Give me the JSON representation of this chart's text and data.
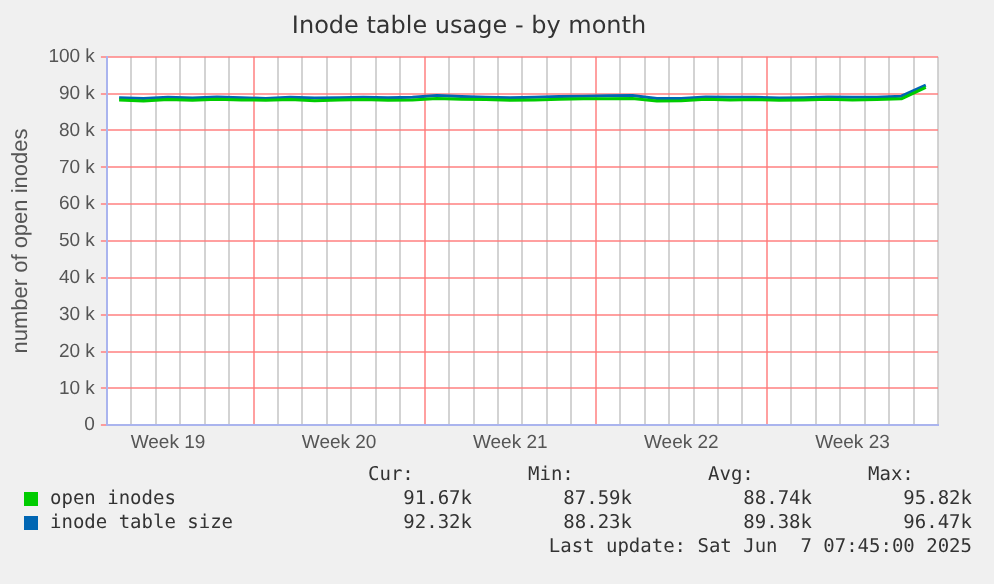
{
  "chart_data": {
    "type": "line",
    "title": "Inode table usage - by month",
    "ylabel": "number of open inodes",
    "categories": [
      null,
      null,
      "Week 19",
      null,
      null,
      null,
      null,
      null,
      null,
      "Week 20",
      null,
      null,
      null,
      null,
      null,
      null,
      "Week 21",
      null,
      null,
      null,
      null,
      null,
      null,
      "Week 22",
      null,
      null,
      null,
      null,
      null,
      null,
      "Week 23",
      null,
      null,
      null
    ],
    "ylim": [
      0,
      100000
    ],
    "yticks": [
      {
        "value": 0,
        "label": "0"
      },
      {
        "value": 10000,
        "label": "10 k"
      },
      {
        "value": 20000,
        "label": "20 k"
      },
      {
        "value": 30000,
        "label": "30 k"
      },
      {
        "value": 40000,
        "label": "40 k"
      },
      {
        "value": 50000,
        "label": "50 k"
      },
      {
        "value": 60000,
        "label": "60 k"
      },
      {
        "value": 70000,
        "label": "70 k"
      },
      {
        "value": 80000,
        "label": "80 k"
      },
      {
        "value": 90000,
        "label": "90 k"
      },
      {
        "value": 100000,
        "label": "100 k"
      }
    ],
    "series": [
      {
        "name": "open inodes",
        "color": "#00cc00",
        "values": [
          88300,
          88000,
          88400,
          88200,
          88500,
          88300,
          88200,
          88400,
          88100,
          88300,
          88400,
          88200,
          88300,
          88700,
          88500,
          88400,
          88200,
          88300,
          88500,
          88600,
          88600,
          88700,
          88000,
          88100,
          88500,
          88300,
          88400,
          88200,
          88300,
          88500,
          88300,
          88400,
          88600,
          91700
        ]
      },
      {
        "name": "inode table size",
        "color": "#0066b3",
        "values": [
          88900,
          88700,
          89000,
          88800,
          89100,
          88900,
          88700,
          89000,
          88800,
          88900,
          89000,
          88900,
          89000,
          89500,
          89200,
          89000,
          88900,
          89000,
          89200,
          89300,
          89400,
          89500,
          88700,
          88700,
          89100,
          89000,
          89000,
          88800,
          88900,
          89100,
          89000,
          89000,
          89300,
          92300
        ]
      }
    ],
    "grid": true,
    "legend": "bottom left",
    "marker": "none",
    "line_style": "solid",
    "annotations": [
      "Cur:",
      "Min:",
      "Avg:",
      "Max:",
      "91.67k",
      "87.59k",
      "88.74k",
      "95.82k",
      "92.32k",
      "88.23k",
      "89.38k",
      "96.47k",
      "Last update: Sat Jun  7 07:45:00 2025"
    ]
  }
}
